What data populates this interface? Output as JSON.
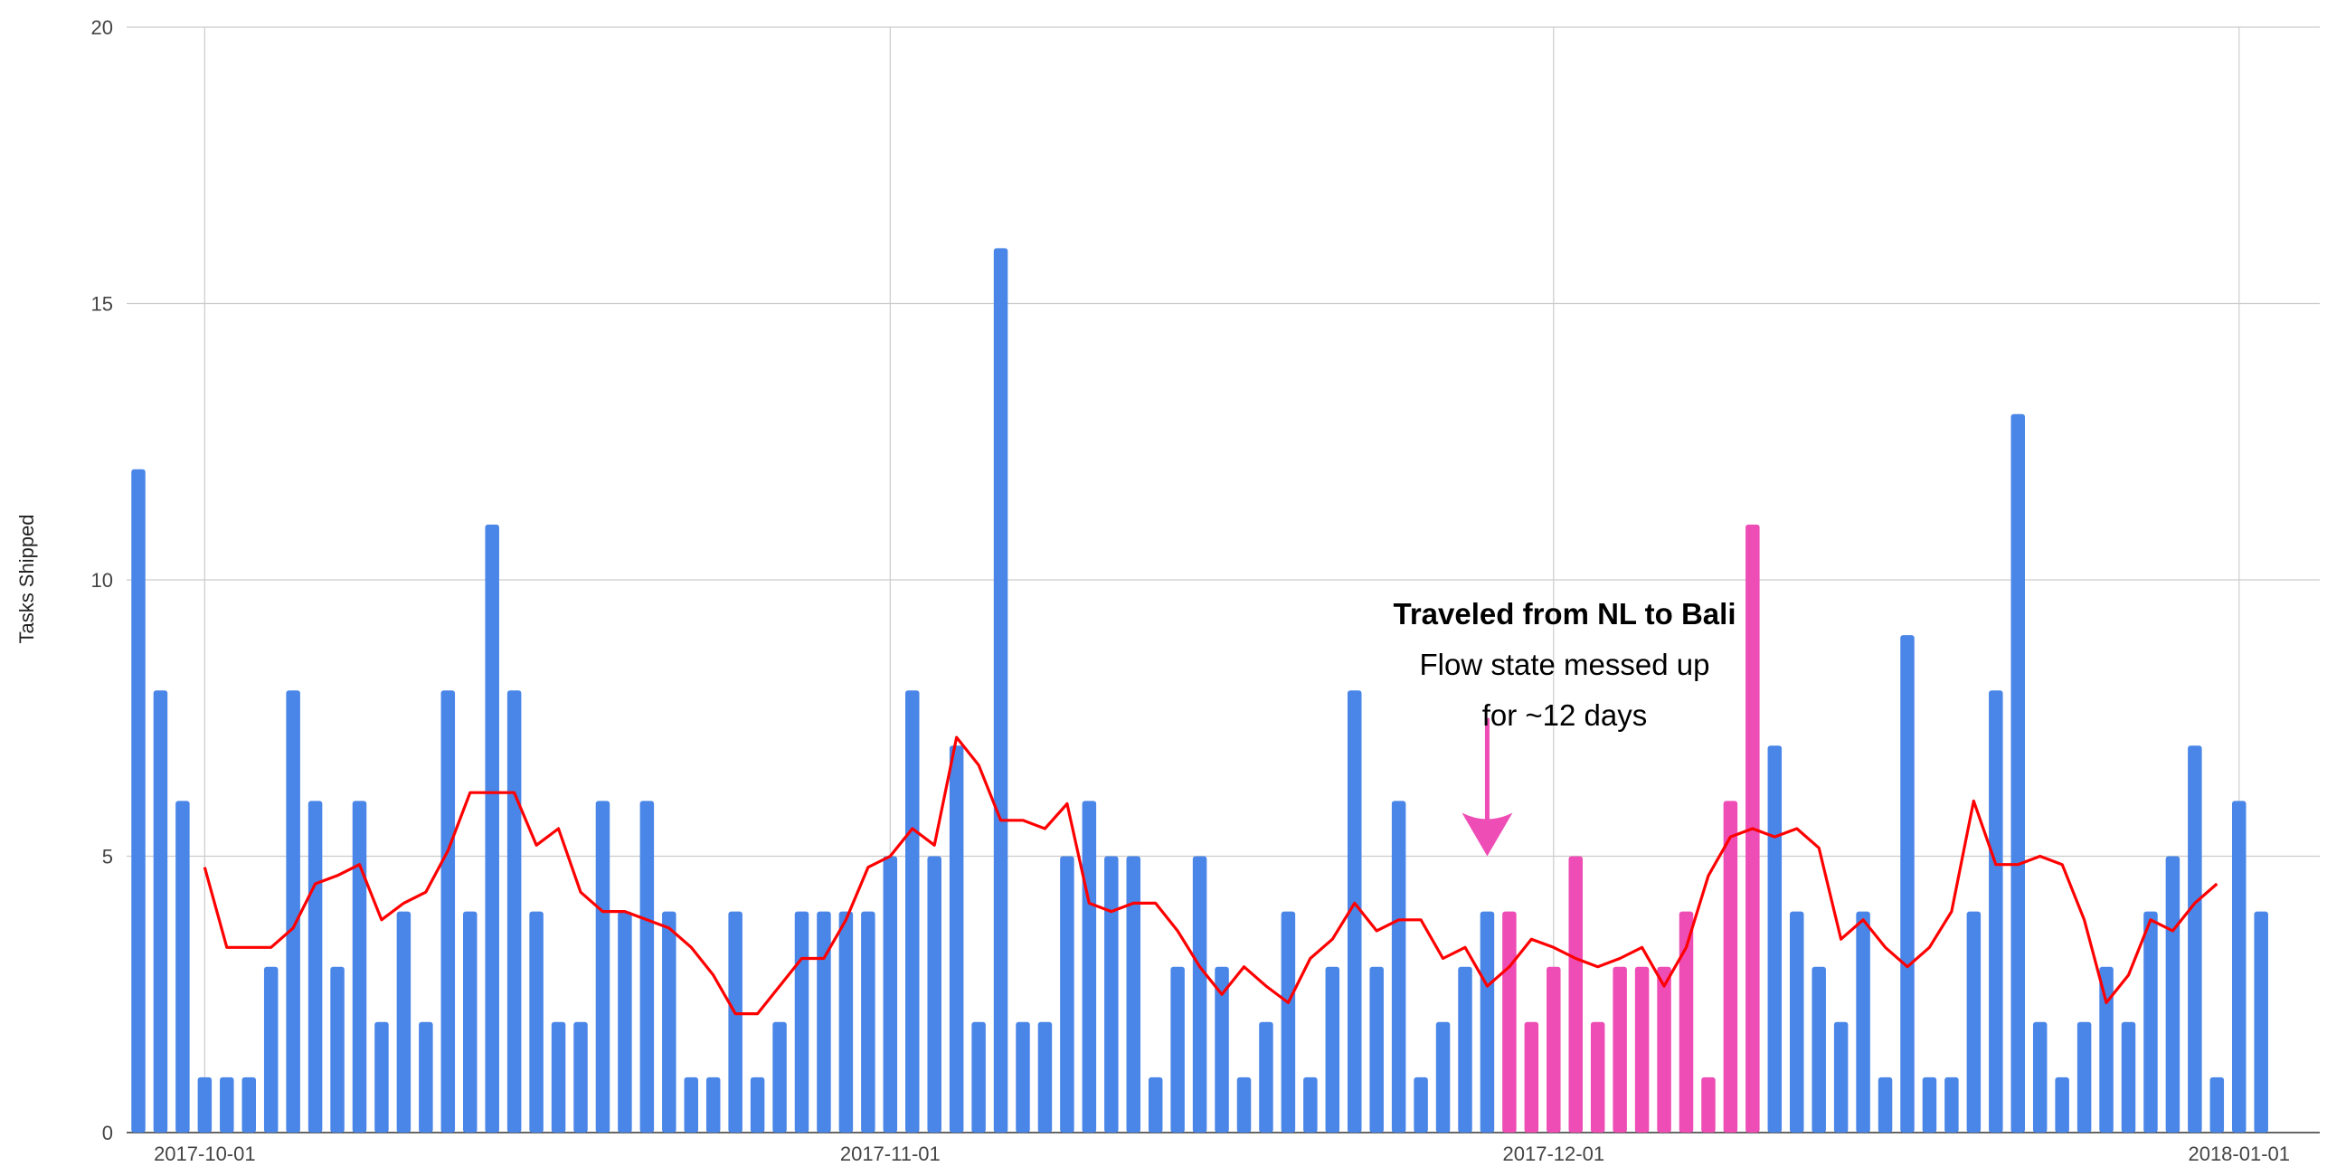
{
  "chart_data": {
    "type": "bar",
    "ylabel": "Tasks Shipped",
    "ylim": [
      0,
      20
    ],
    "yticks": [
      0,
      5,
      10,
      15,
      20
    ],
    "xlim": [
      "2017-09-28",
      "2018-01-03"
    ],
    "xticks": [
      "2017-10-01",
      "2017-11-01",
      "2017-12-01",
      "2018-01-01"
    ],
    "grid": true,
    "colors": {
      "bar": "#4a86e8",
      "highlight": "#ee4db5",
      "line": "#ff0000",
      "arrow": "#ee4db5"
    },
    "series": [
      {
        "kind": "bar",
        "x": [
          "2017-09-28",
          "2017-09-29",
          "2017-09-30",
          "2017-10-01",
          "2017-10-02",
          "2017-10-03",
          "2017-10-04",
          "2017-10-05",
          "2017-10-06",
          "2017-10-07",
          "2017-10-08",
          "2017-10-09",
          "2017-10-10",
          "2017-10-11",
          "2017-10-12",
          "2017-10-13",
          "2017-10-14",
          "2017-10-15",
          "2017-10-16",
          "2017-10-17",
          "2017-10-18",
          "2017-10-19",
          "2017-10-20",
          "2017-10-21",
          "2017-10-22",
          "2017-10-23",
          "2017-10-24",
          "2017-10-25",
          "2017-10-26",
          "2017-10-27",
          "2017-10-28",
          "2017-10-29",
          "2017-10-30",
          "2017-10-31",
          "2017-11-01",
          "2017-11-02",
          "2017-11-03",
          "2017-11-04",
          "2017-11-05",
          "2017-11-06",
          "2017-11-07",
          "2017-11-08",
          "2017-11-09",
          "2017-11-10",
          "2017-11-11",
          "2017-11-12",
          "2017-11-13",
          "2017-11-14",
          "2017-11-15",
          "2017-11-16",
          "2017-11-17",
          "2017-11-18",
          "2017-11-19",
          "2017-11-20",
          "2017-11-21",
          "2017-11-22",
          "2017-11-23",
          "2017-11-24",
          "2017-11-25",
          "2017-11-26",
          "2017-11-27",
          "2017-11-28",
          "2017-11-29",
          "2017-11-30",
          "2017-12-01",
          "2017-12-02",
          "2017-12-03",
          "2017-12-04",
          "2017-12-05",
          "2017-12-06",
          "2017-12-07",
          "2017-12-08",
          "2017-12-09",
          "2017-12-10",
          "2017-12-11",
          "2017-12-12",
          "2017-12-13",
          "2017-12-14",
          "2017-12-15",
          "2017-12-16",
          "2017-12-17",
          "2017-12-18",
          "2017-12-19",
          "2017-12-20",
          "2017-12-21",
          "2017-12-22",
          "2017-12-23",
          "2017-12-24",
          "2017-12-25",
          "2017-12-26",
          "2017-12-27",
          "2017-12-28",
          "2017-12-29",
          "2017-12-30",
          "2017-12-31",
          "2018-01-01",
          "2018-01-02"
        ],
        "values": [
          12,
          8,
          6,
          1,
          1,
          1,
          3,
          8,
          6,
          3,
          6,
          2,
          4,
          2,
          8,
          4,
          11,
          8,
          4,
          2,
          2,
          6,
          4,
          6,
          4,
          1,
          1,
          4,
          1,
          2,
          4,
          4,
          4,
          4,
          5,
          8,
          5,
          7,
          2,
          16,
          2,
          2,
          5,
          6,
          5,
          5,
          1,
          3,
          5,
          3,
          1,
          2,
          4,
          1,
          3,
          8,
          3,
          6,
          1,
          2,
          3,
          4,
          4,
          2,
          3,
          5,
          2,
          3,
          3,
          3,
          4,
          1,
          6,
          11,
          7,
          4,
          3,
          2,
          4,
          1,
          9,
          1,
          1,
          4,
          8,
          13,
          2,
          1,
          2,
          3,
          2,
          4,
          5,
          7,
          1,
          6,
          4
        ],
        "highlight_range": [
          "2017-11-29",
          "2017-12-10"
        ]
      },
      {
        "kind": "line",
        "x": [
          "2017-10-01",
          "2017-10-02",
          "2017-10-03",
          "2017-10-04",
          "2017-10-05",
          "2017-10-06",
          "2017-10-07",
          "2017-10-08",
          "2017-10-09",
          "2017-10-10",
          "2017-10-11",
          "2017-10-12",
          "2017-10-13",
          "2017-10-14",
          "2017-10-15",
          "2017-10-16",
          "2017-10-17",
          "2017-10-18",
          "2017-10-19",
          "2017-10-20",
          "2017-10-21",
          "2017-10-22",
          "2017-10-23",
          "2017-10-24",
          "2017-10-25",
          "2017-10-26",
          "2017-10-27",
          "2017-10-28",
          "2017-10-29",
          "2017-10-30",
          "2017-10-31",
          "2017-11-01",
          "2017-11-02",
          "2017-11-03",
          "2017-11-04",
          "2017-11-05",
          "2017-11-06",
          "2017-11-07",
          "2017-11-08",
          "2017-11-09",
          "2017-11-10",
          "2017-11-11",
          "2017-11-12",
          "2017-11-13",
          "2017-11-14",
          "2017-11-15",
          "2017-11-16",
          "2017-11-17",
          "2017-11-18",
          "2017-11-19",
          "2017-11-20",
          "2017-11-21",
          "2017-11-22",
          "2017-11-23",
          "2017-11-24",
          "2017-11-25",
          "2017-11-26",
          "2017-11-27",
          "2017-11-28",
          "2017-11-29",
          "2017-11-30",
          "2017-12-01",
          "2017-12-02",
          "2017-12-03",
          "2017-12-04",
          "2017-12-05",
          "2017-12-06",
          "2017-12-07",
          "2017-12-08",
          "2017-12-09",
          "2017-12-10",
          "2017-12-11",
          "2017-12-12",
          "2017-12-13",
          "2017-12-14",
          "2017-12-15",
          "2017-12-16",
          "2017-12-17",
          "2017-12-18",
          "2017-12-19",
          "2017-12-20",
          "2017-12-21",
          "2017-12-22",
          "2017-12-23",
          "2017-12-24",
          "2017-12-25",
          "2017-12-26",
          "2017-12-27",
          "2017-12-28",
          "2017-12-29",
          "2017-12-30",
          "2017-12-31"
        ],
        "values": [
          4.8,
          3.35,
          3.35,
          3.35,
          3.7,
          4.5,
          4.65,
          4.85,
          3.85,
          4.15,
          4.35,
          5.1,
          6.15,
          6.15,
          6.15,
          5.2,
          5.5,
          4.35,
          4.0,
          4.0,
          3.85,
          3.7,
          3.35,
          2.85,
          2.15,
          2.15,
          2.65,
          3.15,
          3.15,
          3.85,
          4.8,
          5.0,
          5.5,
          5.2,
          7.15,
          6.65,
          5.65,
          5.65,
          5.5,
          5.95,
          4.15,
          4.0,
          4.15,
          4.15,
          3.65,
          3.0,
          2.5,
          3.0,
          2.65,
          2.35,
          3.15,
          3.5,
          4.15,
          3.65,
          3.85,
          3.85,
          3.15,
          3.35,
          2.65,
          3.0,
          3.5,
          3.35,
          3.15,
          3.0,
          3.15,
          3.35,
          2.65,
          3.35,
          4.65,
          5.35,
          5.5,
          5.35,
          5.5,
          5.15,
          3.5,
          3.85,
          3.35,
          3.0,
          3.35,
          4.0,
          6.0,
          4.85,
          4.85,
          5.0,
          4.85,
          3.85,
          2.35,
          2.85,
          3.85,
          3.65,
          4.15,
          4.5
        ]
      }
    ],
    "annotation": {
      "title": "Traveled from NL to Bali",
      "line1": "Flow state messed up",
      "line2": "for ~12 days",
      "arrow_x": "2017-11-28",
      "arrow_y_from": 7.5,
      "arrow_y_to": 5.0
    }
  }
}
